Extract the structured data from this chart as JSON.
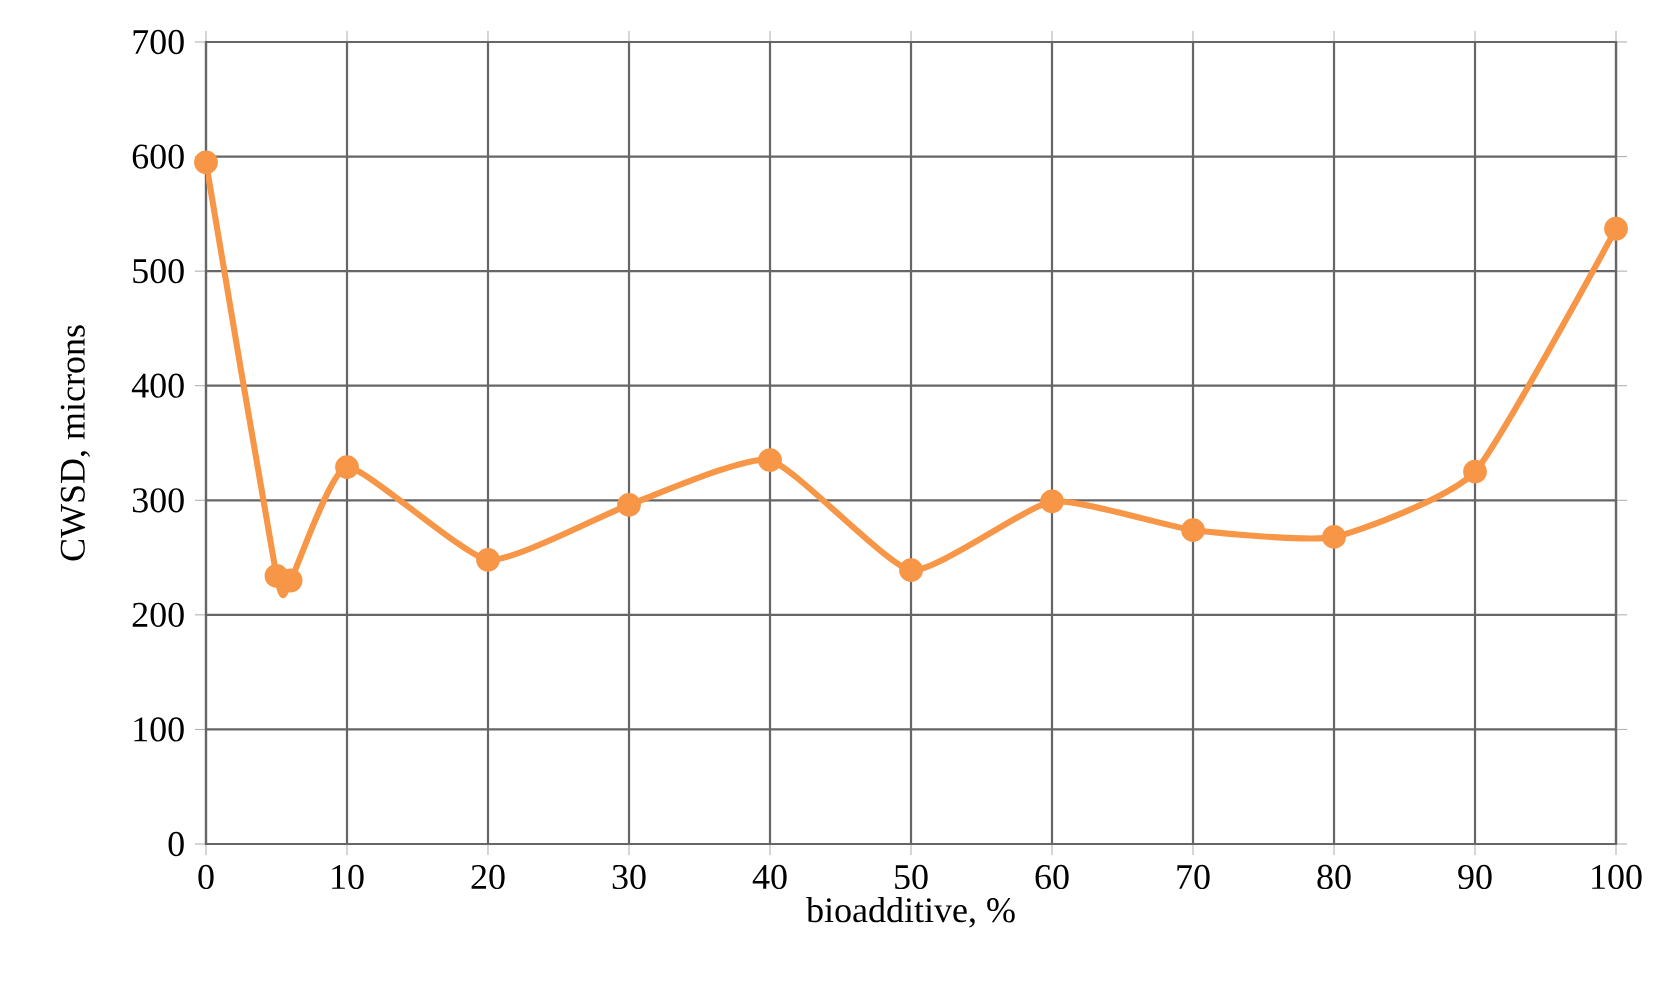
{
  "chart_data": {
    "type": "line",
    "xlabel": "bioadditive, %",
    "ylabel": "CWSD, microns",
    "x": [
      0,
      5,
      6,
      10,
      20,
      30,
      40,
      50,
      60,
      70,
      80,
      90,
      100
    ],
    "series": [
      {
        "color": "#f79646",
        "values": [
          595,
          234,
          230,
          329,
          248,
          296,
          335,
          239,
          299,
          274,
          268,
          325,
          537
        ]
      }
    ],
    "xlim": [
      0,
      100
    ],
    "xticks": [
      0,
      10,
      20,
      30,
      40,
      50,
      60,
      70,
      80,
      90,
      100
    ],
    "ylim": [
      0,
      700
    ],
    "yticks": [
      0,
      100,
      200,
      300,
      400,
      500,
      600,
      700
    ],
    "grid": true,
    "marker": "circle",
    "line_style": "solid"
  }
}
